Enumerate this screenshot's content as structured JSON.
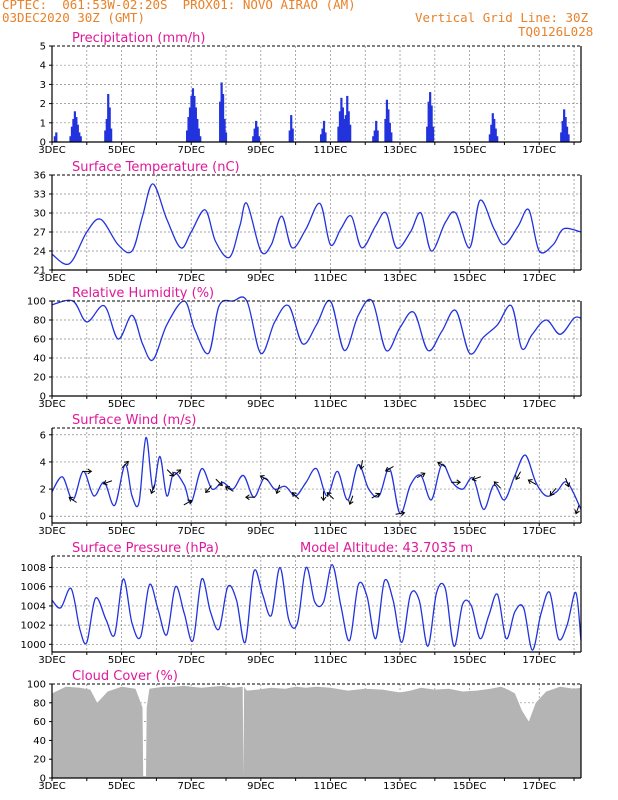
{
  "header": {
    "line1": "CPTEC:  061:53W-02:20S  PROX01: NOVO AIRAO (AM)",
    "line2_left": "03DEC2020 30Z (GMT)",
    "line2_right": "Vertical Grid Line: 30Z",
    "line3_right": "TQ0126L028"
  },
  "colors": {
    "header": "#e8822a",
    "title": "#e0189a",
    "series": "#2233dd",
    "bars": "#2233dd",
    "cloud": "#b4b4b4",
    "wind_arrow": "#000000"
  },
  "x_tick_labels": [
    "3DEC",
    "5DEC",
    "7DEC",
    "9DEC",
    "11DEC",
    "13DEC",
    "15DEC",
    "17DEC"
  ],
  "chart_data": [
    {
      "id": "precip",
      "type": "bar",
      "title": "Precipitation (mm/h)",
      "x_days": [
        3,
        18.2
      ],
      "ylim": [
        0,
        5
      ],
      "yticks": [
        0,
        1,
        2,
        3,
        4,
        5
      ],
      "events": [
        {
          "day": 3.05,
          "values": [
            0.3,
            0.5
          ]
        },
        {
          "day": 3.5,
          "values": [
            0.3,
            0.8,
            1.2,
            1.6,
            1.3,
            0.9,
            0.5,
            0.3
          ]
        },
        {
          "day": 4.5,
          "values": [
            0.6,
            1.2,
            2.5,
            1.8,
            0.7
          ]
        },
        {
          "day": 6.85,
          "values": [
            0.6,
            1.3,
            1.8,
            2.4,
            2.8,
            2.4,
            1.8,
            1.2,
            0.7,
            0.3
          ]
        },
        {
          "day": 7.8,
          "values": [
            2.1,
            3.1,
            2.5,
            1.2,
            0.5
          ]
        },
        {
          "day": 8.75,
          "values": [
            0.3,
            0.7,
            1.1,
            0.8,
            0.3
          ]
        },
        {
          "day": 9.8,
          "values": [
            0.6,
            1.4,
            0.7
          ]
        },
        {
          "day": 10.7,
          "values": [
            0.4,
            0.7,
            1.1,
            0.5
          ]
        },
        {
          "day": 11.2,
          "values": [
            0.8,
            1.6,
            2.3,
            1.8,
            1.2,
            1.4,
            2.4,
            1.6,
            0.9
          ]
        },
        {
          "day": 12.2,
          "values": [
            0.3,
            0.6,
            1.1,
            0.6
          ]
        },
        {
          "day": 12.55,
          "values": [
            1.2,
            2.2,
            1.7,
            1.0,
            0.5
          ]
        },
        {
          "day": 13.75,
          "values": [
            0.8,
            2.1,
            2.6,
            1.9,
            0.8
          ]
        },
        {
          "day": 15.55,
          "values": [
            0.4,
            0.9,
            1.5,
            1.2,
            0.7,
            0.3
          ]
        },
        {
          "day": 17.6,
          "values": [
            0.5,
            1.1,
            1.7,
            1.3,
            0.8,
            0.4
          ]
        }
      ]
    },
    {
      "id": "temp",
      "type": "line",
      "title": "Surface Temperature (nC)",
      "x_days": [
        3,
        18.2
      ],
      "ylim": [
        21,
        36
      ],
      "yticks": [
        21,
        24,
        27,
        30,
        33,
        36
      ],
      "x": [
        3.0,
        3.5,
        4.0,
        4.4,
        4.9,
        5.3,
        5.6,
        5.9,
        6.3,
        6.7,
        7.0,
        7.4,
        7.7,
        8.1,
        8.4,
        8.6,
        9.0,
        9.3,
        9.6,
        9.9,
        10.3,
        10.7,
        11.0,
        11.3,
        11.6,
        11.9,
        12.3,
        12.6,
        12.9,
        13.3,
        13.6,
        13.9,
        14.3,
        14.6,
        15.0,
        15.3,
        15.7,
        16.0,
        16.4,
        16.7,
        17.0,
        17.4,
        17.7,
        18.2
      ],
      "y": [
        23.5,
        22.0,
        27.0,
        29.0,
        25.0,
        24.0,
        29.5,
        34.6,
        29.0,
        24.5,
        27.0,
        30.5,
        25.5,
        23.0,
        28.0,
        31.5,
        24.0,
        25.0,
        29.5,
        24.5,
        27.5,
        31.5,
        25.0,
        27.5,
        29.5,
        24.5,
        28.0,
        30.0,
        24.5,
        27.0,
        30.0,
        24.0,
        28.5,
        30.0,
        24.5,
        32.0,
        27.5,
        25.0,
        28.0,
        30.5,
        24.0,
        25.0,
        27.5,
        27.0
      ]
    },
    {
      "id": "rh",
      "type": "line",
      "title": "Relative Humidity (%)",
      "x_days": [
        3,
        18.2
      ],
      "ylim": [
        0,
        100
      ],
      "yticks": [
        0,
        20,
        40,
        60,
        80,
        100
      ],
      "x": [
        3.0,
        3.6,
        4.0,
        4.5,
        4.9,
        5.3,
        5.6,
        5.9,
        6.3,
        6.8,
        7.1,
        7.5,
        7.8,
        8.2,
        8.6,
        9.0,
        9.4,
        9.8,
        10.2,
        10.6,
        11.0,
        11.4,
        11.8,
        12.2,
        12.6,
        13.0,
        13.4,
        13.8,
        14.2,
        14.6,
        15.0,
        15.4,
        15.8,
        16.2,
        16.5,
        16.8,
        17.2,
        17.6,
        18.0,
        18.2
      ],
      "y": [
        96.0,
        100.0,
        78.0,
        95.0,
        60.0,
        85.0,
        55.0,
        38.0,
        75.0,
        100.0,
        70.0,
        45.0,
        95.0,
        100.0,
        100.0,
        45.0,
        78.0,
        95.0,
        55.0,
        75.0,
        100.0,
        48.0,
        85.0,
        100.0,
        48.0,
        72.0,
        88.0,
        48.0,
        68.0,
        90.0,
        45.0,
        62.0,
        75.0,
        95.0,
        50.0,
        65.0,
        80.0,
        65.0,
        82.0,
        82.0
      ]
    },
    {
      "id": "wind",
      "type": "line",
      "title": "Surface Wind (m/s)",
      "x_days": [
        3,
        18.2
      ],
      "ylim": [
        -0.5,
        6.5
      ],
      "yticks": [
        0,
        2,
        4,
        6
      ],
      "x": [
        3.0,
        3.3,
        3.6,
        3.9,
        4.2,
        4.5,
        4.8,
        5.1,
        5.3,
        5.5,
        5.7,
        5.9,
        6.1,
        6.3,
        6.5,
        6.8,
        7.0,
        7.3,
        7.6,
        7.9,
        8.2,
        8.5,
        8.8,
        9.1,
        9.4,
        9.7,
        10.0,
        10.3,
        10.6,
        10.9,
        11.2,
        11.5,
        11.8,
        12.1,
        12.4,
        12.7,
        13.0,
        13.3,
        13.6,
        13.9,
        14.2,
        14.5,
        14.8,
        15.1,
        15.4,
        15.7,
        16.0,
        16.3,
        16.6,
        16.9,
        17.2,
        17.5,
        17.8,
        18.2
      ],
      "y": [
        1.8,
        2.9,
        1.2,
        3.3,
        1.5,
        2.5,
        0.8,
        3.8,
        1.5,
        1.0,
        5.8,
        2.0,
        4.4,
        1.5,
        3.2,
        2.3,
        1.0,
        3.5,
        2.0,
        2.5,
        2.0,
        3.0,
        1.4,
        2.8,
        2.0,
        2.2,
        1.5,
        2.5,
        3.5,
        1.5,
        3.3,
        1.2,
        3.8,
        2.0,
        1.5,
        3.5,
        0.2,
        2.3,
        3.0,
        1.2,
        3.8,
        2.5,
        2.0,
        2.8,
        0.5,
        2.3,
        1.2,
        3.0,
        4.5,
        2.5,
        1.5,
        1.8,
        2.5,
        0.5
      ],
      "arrows": [
        {
          "day": 3.6,
          "dir_deg": 305
        },
        {
          "day": 4.0,
          "dir_deg": 90
        },
        {
          "day": 4.6,
          "dir_deg": 250
        },
        {
          "day": 5.1,
          "dir_deg": 45
        },
        {
          "day": 5.9,
          "dir_deg": 200
        },
        {
          "day": 6.4,
          "dir_deg": 135
        },
        {
          "day": 6.6,
          "dir_deg": 50
        },
        {
          "day": 6.9,
          "dir_deg": 60
        },
        {
          "day": 7.5,
          "dir_deg": 220
        },
        {
          "day": 7.8,
          "dir_deg": 135
        },
        {
          "day": 8.1,
          "dir_deg": 300
        },
        {
          "day": 8.7,
          "dir_deg": 270
        },
        {
          "day": 9.1,
          "dir_deg": 300
        },
        {
          "day": 9.5,
          "dir_deg": 200
        },
        {
          "day": 10.0,
          "dir_deg": 315
        },
        {
          "day": 10.8,
          "dir_deg": 180
        },
        {
          "day": 11.0,
          "dir_deg": 315
        },
        {
          "day": 11.6,
          "dir_deg": 200
        },
        {
          "day": 11.9,
          "dir_deg": 190
        },
        {
          "day": 12.3,
          "dir_deg": 60
        },
        {
          "day": 12.7,
          "dir_deg": 240
        },
        {
          "day": 13.0,
          "dir_deg": 80
        },
        {
          "day": 13.6,
          "dir_deg": 60
        },
        {
          "day": 14.2,
          "dir_deg": 300
        },
        {
          "day": 14.6,
          "dir_deg": 90
        },
        {
          "day": 15.2,
          "dir_deg": 250
        },
        {
          "day": 15.8,
          "dir_deg": 315
        },
        {
          "day": 16.4,
          "dir_deg": 210
        },
        {
          "day": 16.8,
          "dir_deg": 300
        },
        {
          "day": 17.4,
          "dir_deg": 220
        },
        {
          "day": 17.8,
          "dir_deg": 160
        },
        {
          "day": 18.1,
          "dir_deg": 200
        }
      ]
    },
    {
      "id": "pres",
      "type": "line",
      "title": "Surface Pressure (hPa)",
      "annotation": "Model Altitude: 43.7035 m",
      "x_days": [
        3,
        18.2
      ],
      "ylim": [
        999.2,
        1009.2
      ],
      "yticks": [
        1000,
        1002,
        1004,
        1006,
        1008
      ],
      "x": [
        3.0,
        3.25,
        3.55,
        3.8,
        4.0,
        4.25,
        4.55,
        4.8,
        5.05,
        5.3,
        5.55,
        5.8,
        6.05,
        6.3,
        6.55,
        6.8,
        7.05,
        7.3,
        7.55,
        7.8,
        8.05,
        8.3,
        8.55,
        8.8,
        9.05,
        9.3,
        9.55,
        9.8,
        10.05,
        10.3,
        10.55,
        10.8,
        11.05,
        11.3,
        11.55,
        11.8,
        12.05,
        12.3,
        12.55,
        12.8,
        13.05,
        13.3,
        13.55,
        13.8,
        14.05,
        14.3,
        14.55,
        14.8,
        15.05,
        15.3,
        15.55,
        15.8,
        16.05,
        16.3,
        16.55,
        16.8,
        17.05,
        17.3,
        17.55,
        17.8,
        18.05,
        18.2
      ],
      "y": [
        1004.6,
        1003.8,
        1005.8,
        1001.6,
        1000.2,
        1004.8,
        1002.6,
        1001.0,
        1006.8,
        1002.2,
        1000.8,
        1006.2,
        1003.6,
        1001.0,
        1006.0,
        1003.2,
        1000.4,
        1006.8,
        1003.4,
        1001.6,
        1006.0,
        1004.6,
        1000.2,
        1007.6,
        1005.2,
        1003.0,
        1008.0,
        1002.6,
        1002.2,
        1008.0,
        1004.4,
        1004.4,
        1008.3,
        1004.0,
        1000.4,
        1006.2,
        1005.0,
        1000.6,
        1006.6,
        1004.6,
        1000.2,
        1005.2,
        1004.6,
        999.8,
        1005.4,
        1005.8,
        999.8,
        1004.2,
        1004.0,
        1000.6,
        1003.0,
        1005.2,
        1000.6,
        1003.4,
        1003.8,
        999.4,
        1003.2,
        1005.4,
        1000.6,
        1002.0,
        1005.4,
        1000.4
      ]
    },
    {
      "id": "cloud",
      "type": "area",
      "title": "Cloud Cover (%)",
      "x_days": [
        3,
        18.2
      ],
      "ylim": [
        0,
        100
      ],
      "yticks": [
        0,
        20,
        40,
        60,
        80,
        100
      ],
      "x": [
        3.0,
        3.4,
        3.8,
        4.1,
        4.3,
        4.6,
        5.0,
        5.4,
        5.6,
        5.62,
        5.7,
        5.72,
        5.8,
        6.2,
        6.5,
        6.8,
        7.0,
        7.3,
        7.6,
        7.9,
        8.2,
        8.48,
        8.5,
        8.52,
        8.6,
        8.9,
        9.3,
        9.7,
        10.0,
        10.3,
        10.6,
        11.0,
        11.5,
        12.0,
        12.5,
        13.0,
        13.3,
        13.6,
        14.0,
        14.4,
        14.8,
        15.2,
        15.6,
        15.9,
        16.1,
        16.3,
        16.5,
        16.7,
        16.9,
        17.2,
        17.6,
        18.0,
        18.2
      ],
      "y": [
        90,
        97,
        96,
        94,
        80,
        92,
        97,
        95,
        75,
        2,
        2,
        75,
        95,
        97,
        97,
        98,
        97,
        96,
        97,
        98,
        96,
        97,
        2,
        97,
        93,
        94,
        96,
        95,
        97,
        96,
        97,
        96,
        93,
        95,
        94,
        91,
        93,
        96,
        94,
        95,
        92,
        93,
        95,
        97,
        94,
        90,
        72,
        60,
        80,
        92,
        97,
        95,
        96
      ]
    }
  ]
}
